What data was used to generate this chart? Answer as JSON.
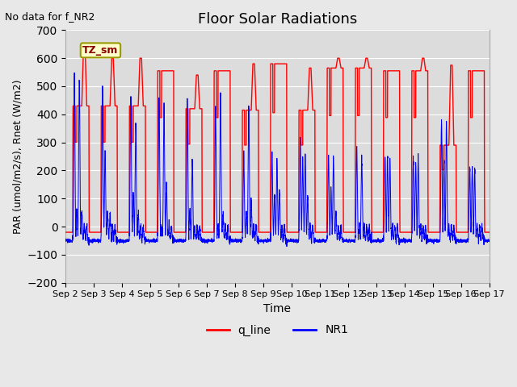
{
  "title": "Floor Solar Radiations",
  "xlabel": "Time",
  "ylabel": "PAR (umol/m2/s), Rnet (W/m2)",
  "note": "No data for f_NR2",
  "legend_label": "TZ_sm",
  "ylim": [
    -200,
    700
  ],
  "yticks": [
    -200,
    -100,
    0,
    100,
    200,
    300,
    400,
    500,
    600,
    700
  ],
  "num_days": 15,
  "bg_color": "#dcdcdc",
  "line1_color": "#ff0000",
  "line2_color": "#0000ff",
  "line1_label": "q_line",
  "line2_label": "NR1",
  "xtick_labels": [
    "Sep 2",
    "Sep 3",
    "Sep 4",
    "Sep 5",
    "Sep 6",
    "Sep 7",
    "Sep 8",
    "Sep 9",
    "Sep 10",
    "Sep 11",
    "Sep 12",
    "Sep 13",
    "Sep 14",
    "Sep 15",
    "Sep 16",
    "Sep 17"
  ]
}
